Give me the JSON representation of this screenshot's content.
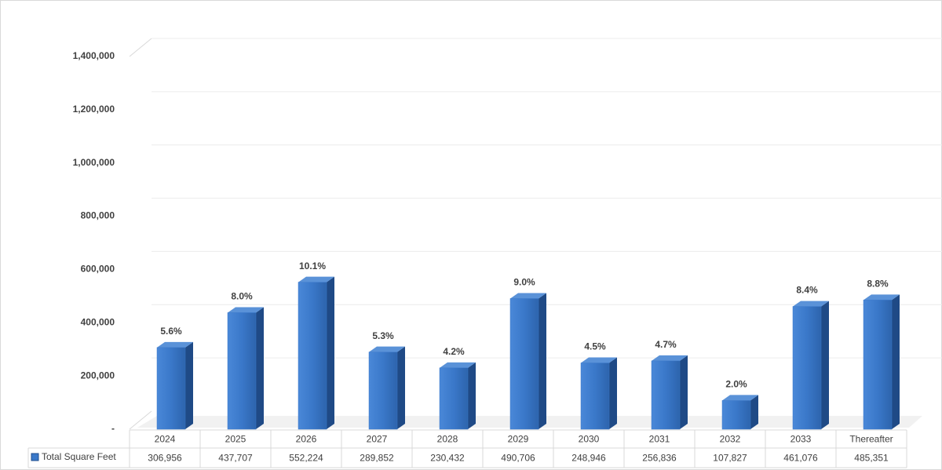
{
  "chart_data": {
    "type": "bar3d",
    "categories": [
      "2024",
      "2025",
      "2026",
      "2027",
      "2028",
      "2029",
      "2030",
      "2031",
      "2032",
      "2033",
      "Thereafter"
    ],
    "series": [
      {
        "name": "Total Square Feet",
        "color": "#3a78c9",
        "values": [
          306956,
          437707,
          552224,
          289852,
          230432,
          490706,
          248946,
          256836,
          107827,
          461076,
          485351
        ],
        "value_labels": [
          "306,956",
          "437,707",
          "552,224",
          "289,852",
          "230,432",
          "490,706",
          "248,946",
          "256,836",
          "107,827",
          "461,076",
          "485,351"
        ]
      }
    ],
    "share_labels": [
      {
        "value": 5.6,
        "label": "5.6%"
      },
      {
        "value": 8.0,
        "label": "8.0%"
      },
      {
        "value": 10.1,
        "label": "10.1%"
      },
      {
        "value": 5.3,
        "label": "5.3%"
      },
      {
        "value": 4.2,
        "label": "4.2%"
      },
      {
        "value": 9.0,
        "label": "9.0%"
      },
      {
        "value": 4.5,
        "label": "4.5%"
      },
      {
        "value": 4.7,
        "label": "4.7%"
      },
      {
        "value": 2.0,
        "label": "2.0%"
      },
      {
        "value": 8.4,
        "label": "8.4%"
      },
      {
        "value": 8.8,
        "label": "8.8%"
      }
    ],
    "ylim": [
      0,
      1400000
    ],
    "yticks": [
      {
        "value": 0,
        "label": "-"
      },
      {
        "value": 200000,
        "label": "200,000"
      },
      {
        "value": 400000,
        "label": "400,000"
      },
      {
        "value": 600000,
        "label": "600,000"
      },
      {
        "value": 800000,
        "label": "800,000"
      },
      {
        "value": 1000000,
        "label": "1,000,000"
      },
      {
        "value": 1200000,
        "label": "1,200,000"
      },
      {
        "value": 1400000,
        "label": "1,400,000"
      }
    ],
    "grid": true
  }
}
